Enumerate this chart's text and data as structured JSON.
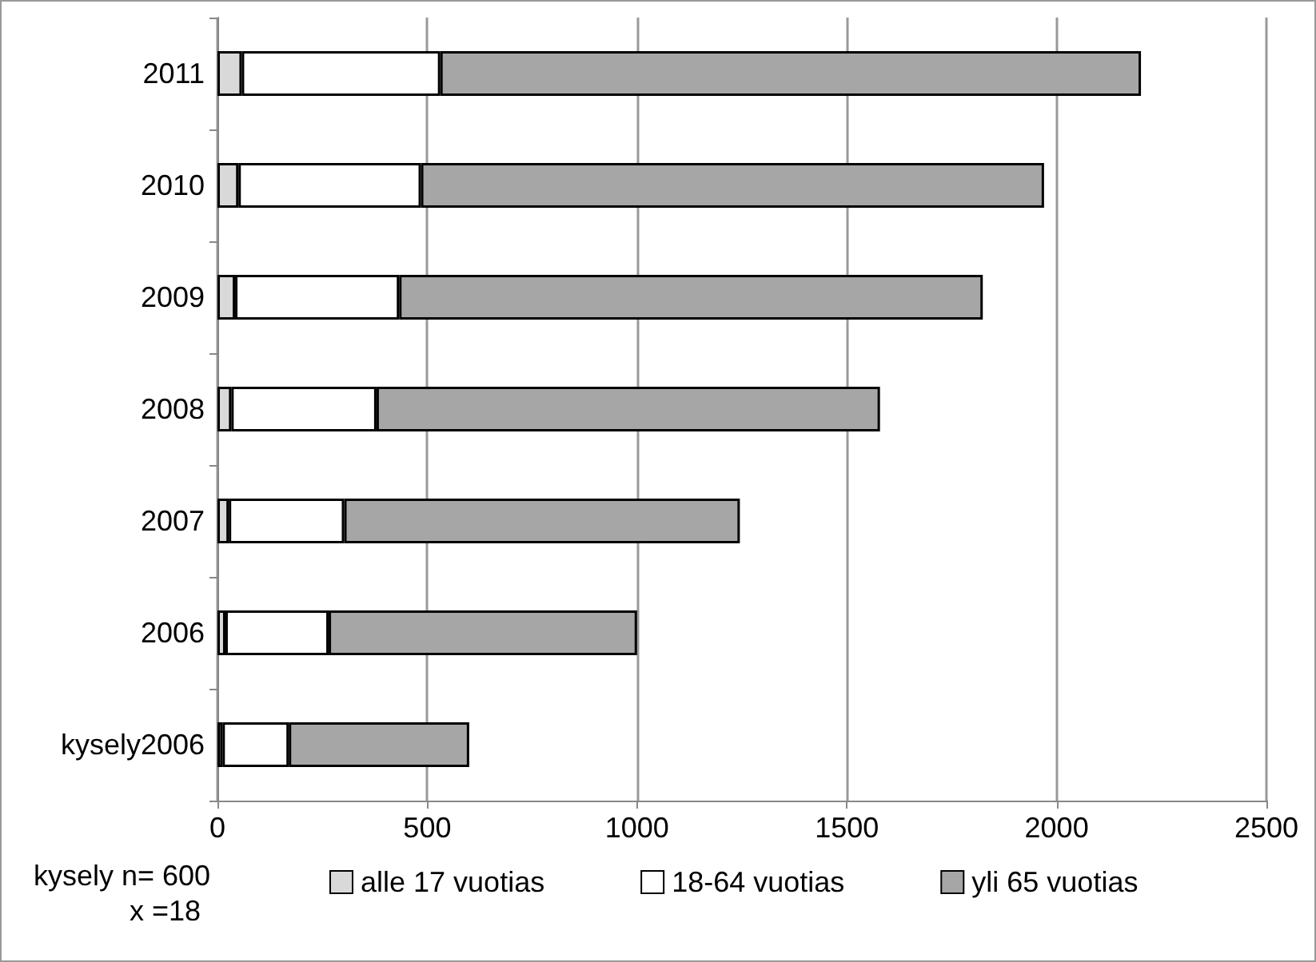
{
  "chart_data": {
    "type": "bar",
    "orientation": "horizontal",
    "stacked": true,
    "categories": [
      "2011",
      "2010",
      "2009",
      "2008",
      "2007",
      "2006",
      "kysely2006"
    ],
    "series": [
      {
        "name": "alle 17 vuotias",
        "color": "#d9d9d9",
        "values": [
          58,
          50,
          42,
          33,
          27,
          19,
          12
        ]
      },
      {
        "name": "18-64 vuotias",
        "color": "#ffffff",
        "values": [
          473,
          435,
          391,
          346,
          275,
          246,
          158
        ]
      },
      {
        "name": "yli 65 vuotias",
        "color": "#a6a6a6",
        "values": [
          1670,
          1485,
          1391,
          1200,
          943,
          735,
          430
        ]
      }
    ],
    "xlim": [
      0,
      2500
    ],
    "xticks": [
      0,
      500,
      1000,
      1500,
      2000,
      2500
    ],
    "grid": "x",
    "legend": "bottom",
    "annotations": [
      "kysely n= 600",
      "x =18"
    ]
  }
}
